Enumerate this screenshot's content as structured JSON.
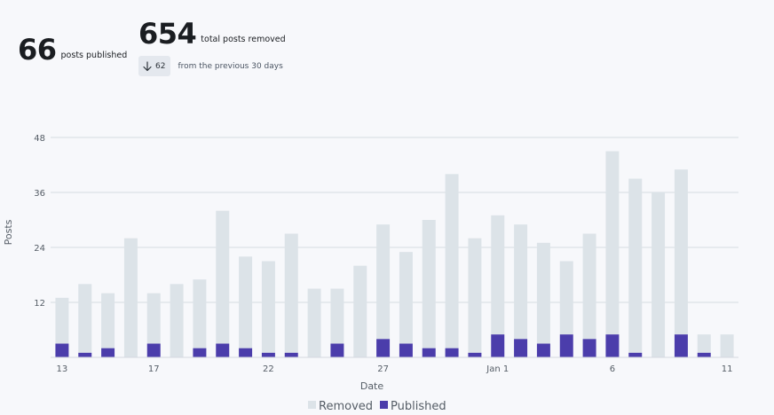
{
  "summary": {
    "published_count": "66",
    "published_label": "posts published",
    "removed_count": "654",
    "removed_label": "total posts removed",
    "change_value": "62",
    "change_direction": "down",
    "change_label": "from the previous 30 days"
  },
  "colors": {
    "removed": "#dce3e8",
    "published": "#4b3dab",
    "grid": "#e1e5ea",
    "badge": "#e4e8ee"
  },
  "chart_data": {
    "type": "bar",
    "stacked": true,
    "xlabel": "Date",
    "ylabel": "Posts",
    "ylim": [
      0,
      48
    ],
    "yticks": [
      12,
      24,
      36,
      48
    ],
    "xtick_labels": {
      "0": "13",
      "4": "17",
      "9": "22",
      "14": "27",
      "19": "Jan 1",
      "24": "6",
      "29": "11"
    },
    "legend_position": "bottom-center",
    "series": [
      {
        "name": "Removed",
        "values": [
          10,
          15,
          12,
          26,
          11,
          16,
          15,
          29,
          20,
          20,
          26,
          15,
          12,
          20,
          25,
          20,
          28,
          38,
          25,
          26,
          25,
          22,
          16,
          23,
          40,
          38,
          36,
          36,
          4,
          5
        ]
      },
      {
        "name": "Published",
        "values": [
          3,
          1,
          2,
          0,
          3,
          0,
          2,
          3,
          2,
          1,
          1,
          0,
          3,
          0,
          4,
          3,
          2,
          2,
          1,
          5,
          4,
          3,
          5,
          4,
          5,
          1,
          0,
          5,
          1,
          0
        ]
      }
    ]
  }
}
